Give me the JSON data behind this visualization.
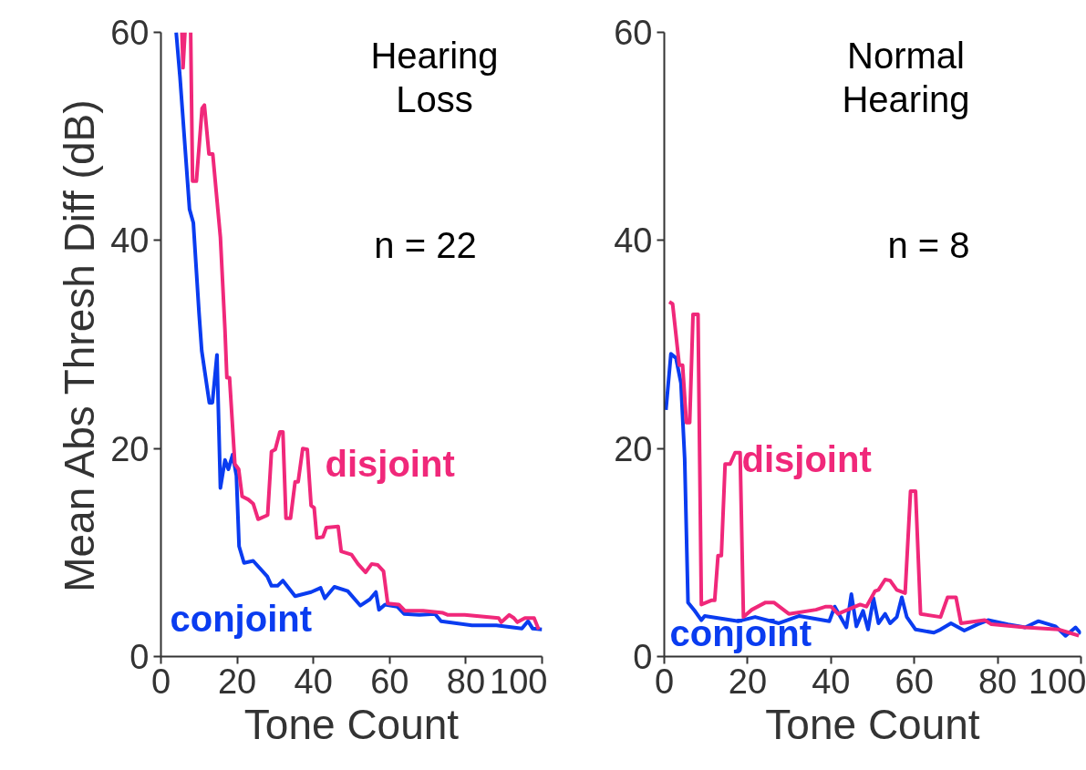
{
  "chart_data": [
    {
      "type": "line",
      "title": "Hearing Loss",
      "ylabel": "Mean Abs Thresh Diff (dB)",
      "xlabel": "Tone Count",
      "annotations": [
        "n = 22"
      ],
      "xlim": [
        0,
        100
      ],
      "ylim": [
        0,
        60
      ],
      "xticks": [
        0,
        20,
        40,
        60,
        80,
        100
      ],
      "yticks": [
        0,
        20,
        40,
        60
      ],
      "grid": false,
      "series": [
        {
          "name": "conjoint",
          "color": "#0a3cf0",
          "x": [
            4,
            5,
            7.5,
            8.5,
            10,
            10.7,
            12.7,
            13.5,
            14.7,
            15.6,
            16.8,
            17.7,
            18.8,
            19.8,
            20.5,
            21.8,
            24.2,
            27.9,
            29,
            30.6,
            32,
            35.2,
            39.4,
            41.9,
            43,
            45.5,
            49,
            52.3,
            54.8,
            56.4,
            57.2,
            58.8,
            62,
            63.8,
            67.8,
            71.9,
            73.5,
            81.6,
            88,
            94.7,
            96.3,
            97.5,
            100
          ],
          "values": [
            60,
            55.7,
            43,
            41.7,
            33,
            29.4,
            24.4,
            24.4,
            29,
            16.2,
            18.9,
            18,
            19.4,
            17.4,
            10.6,
            9,
            9.2,
            7.7,
            6.8,
            6.8,
            7.3,
            5.8,
            6.2,
            6.6,
            5.6,
            6.7,
            6.3,
            4.9,
            5.5,
            6.2,
            4.5,
            5,
            4.8,
            4.1,
            4,
            4.1,
            3.4,
            3,
            3,
            2.7,
            3.4,
            2.7,
            2.6
          ]
        },
        {
          "name": "disjoint",
          "color": "#f0287a",
          "x": [
            5.5,
            5.8,
            6.3,
            7,
            7.8,
            8.3,
            9.3,
            10.8,
            11.4,
            12.6,
            13.6,
            15.6,
            16.8,
            17.3,
            18,
            19.4,
            20.4,
            21.3,
            22.9,
            24.2,
            25.5,
            28,
            29,
            30,
            31.2,
            32,
            32.8,
            34,
            35.2,
            36,
            37.2,
            38.4,
            39.4,
            40.2,
            40.9,
            42.5,
            43.4,
            46.5,
            47.3,
            50,
            51.7,
            53.7,
            55.3,
            56.9,
            58.4,
            59.5,
            62.4,
            64,
            68.8,
            74,
            75.3,
            79.7,
            88.6,
            89.3,
            91.4,
            92.6,
            93.5,
            95.5,
            97.9,
            99.1
          ],
          "values": [
            60,
            56.6,
            60,
            null,
            60,
            45.7,
            45.7,
            52.7,
            53,
            48.3,
            48.3,
            40.3,
            31.4,
            26.8,
            26.8,
            18.5,
            18,
            15.4,
            15.1,
            14.7,
            13.2,
            13.6,
            19.7,
            19.9,
            21.6,
            21.6,
            13.3,
            13.3,
            16.8,
            16.8,
            20,
            19.9,
            14.5,
            14.3,
            11.4,
            11.5,
            12.4,
            12.5,
            10.1,
            9.8,
            8.9,
            8.1,
            8.9,
            8.8,
            8.2,
            5.1,
            5,
            4.4,
            4.4,
            4.2,
            4,
            4,
            3.7,
            3.3,
            4,
            3.7,
            3.3,
            3.7,
            3.7,
            2.6
          ]
        }
      ]
    },
    {
      "type": "line",
      "title": "Normal Hearing",
      "xlabel": "Tone Count",
      "annotations": [
        "n = 8"
      ],
      "xlim": [
        0,
        100
      ],
      "ylim": [
        0,
        60
      ],
      "xticks": [
        0,
        20,
        40,
        60,
        80,
        100
      ],
      "yticks": [
        0,
        20,
        40,
        60
      ],
      "grid": false,
      "series": [
        {
          "name": "conjoint",
          "color": "#0a3cf0",
          "x": [
            0.4,
            1.6,
            2.8,
            4,
            4.9,
            5.7,
            7.3,
            8.9,
            9.7,
            17.8,
            21.8,
            27.5,
            32.4,
            39.6,
            40.9,
            43.7,
            44.9,
            46.1,
            47.7,
            48.9,
            50.2,
            51.4,
            53,
            54.2,
            55.8,
            57,
            58.2,
            60.3,
            64.7,
            66.3,
            68.8,
            72,
            75.2,
            77.7,
            82.5,
            86.6,
            89.8,
            93.9,
            96.3,
            98.7,
            100
          ],
          "values": [
            23.7,
            29.1,
            28.7,
            26.3,
            19,
            5.2,
            4.4,
            3.5,
            3.9,
            3.4,
            3.8,
            3.2,
            3.9,
            3.4,
            4.8,
            2.8,
            6,
            2.9,
            4.4,
            2.6,
            5.6,
            3.2,
            4.1,
            3.2,
            3.8,
            5.7,
            3.8,
            2.6,
            2.3,
            2.6,
            3.2,
            2.5,
            3.1,
            3.5,
            3.1,
            2.8,
            3.4,
            2.9,
            2,
            2.8,
            2.2
          ]
        },
        {
          "name": "disjoint",
          "color": "#f0287a",
          "x": [
            1.2,
            2,
            3.6,
            4.4,
            5.3,
            6.1,
            6.9,
            8.1,
            8.9,
            11.3,
            12.1,
            12.9,
            13.7,
            14.6,
            15.8,
            17,
            18.2,
            19,
            21,
            24.3,
            26.3,
            29.9,
            36.4,
            38.8,
            40,
            41.7,
            47,
            48.5,
            50.6,
            51.4,
            53,
            54.2,
            55.8,
            57.8,
            59.1,
            60.3,
            61.5,
            66.3,
            68,
            70,
            71.2,
            76.9,
            78.5,
            86.6,
            94.7,
            97.1,
            99.5
          ],
          "values": [
            34.1,
            33.9,
            28,
            28,
            22.5,
            22.5,
            32.9,
            32.9,
            5,
            5.4,
            5.4,
            9.7,
            9.7,
            18.5,
            18.5,
            19.6,
            19.6,
            3.8,
            4.5,
            5.2,
            5.2,
            4.1,
            4.5,
            4.8,
            4.8,
            4.1,
            5,
            4.8,
            6.3,
            6.4,
            7.4,
            7.3,
            6.4,
            6.1,
            15.9,
            15.9,
            4.1,
            3.8,
            5.7,
            5.7,
            3.2,
            3.5,
            3.1,
            2.8,
            2.6,
            2.3,
            2
          ]
        }
      ]
    }
  ]
}
